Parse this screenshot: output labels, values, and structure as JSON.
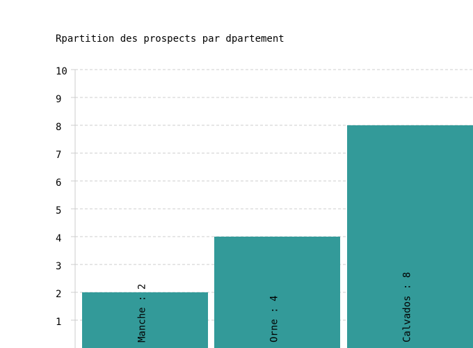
{
  "chart_data": {
    "type": "bar",
    "title": "Rpartition des prospects par dpartement",
    "categories": [
      "Manche",
      "Orne",
      "Calvados"
    ],
    "values": [
      2,
      4,
      8
    ],
    "bar_labels": [
      "Manche : 2",
      "Orne : 4",
      "Calvados : 8"
    ],
    "y_ticks": [
      "1",
      "2",
      "3",
      "4",
      "5",
      "6",
      "7",
      "8",
      "9",
      "10"
    ],
    "ylim": [
      0,
      10
    ],
    "grid": true,
    "bar_color": "#339a99",
    "grid_color": "#cccccc"
  }
}
